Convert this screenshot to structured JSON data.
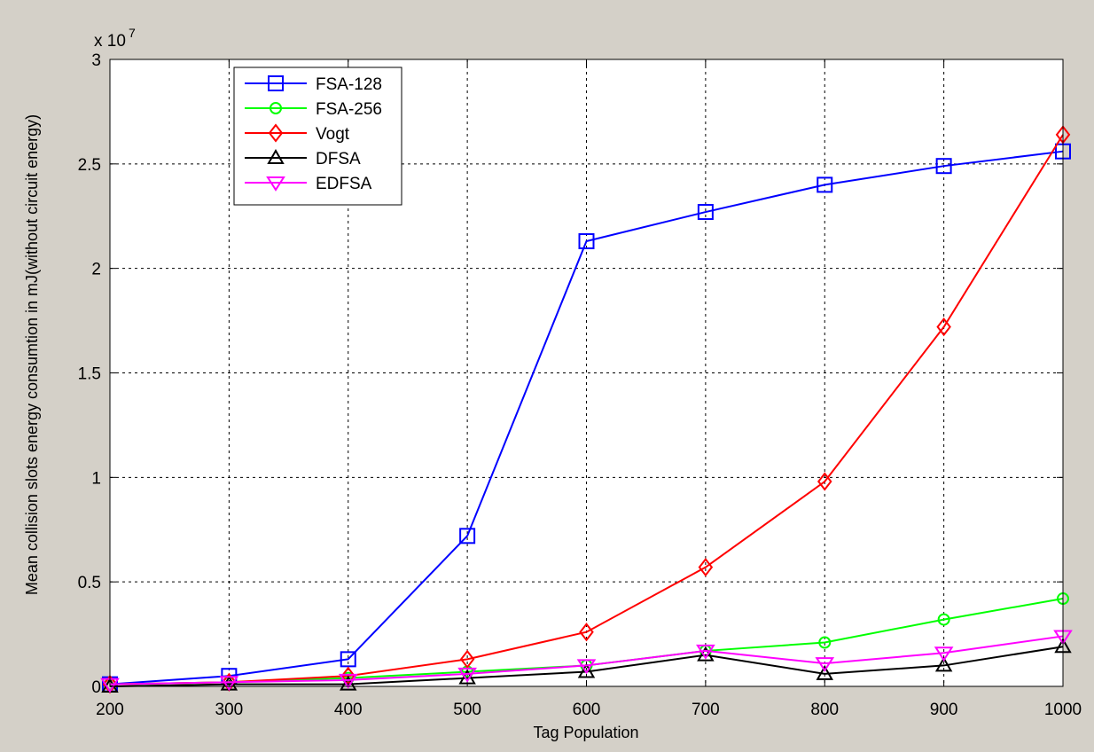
{
  "chart_data": {
    "type": "line",
    "title": "",
    "xlabel": "Tag Population",
    "ylabel": "Mean collision slots energy consumtion in mJ(without circuit energy)",
    "y_multiplier": {
      "base": "x 10",
      "exponent": "7"
    },
    "x": [
      200,
      300,
      400,
      500,
      600,
      700,
      800,
      900,
      1000
    ],
    "xlim": [
      200,
      1000
    ],
    "ylim": [
      0,
      3
    ],
    "x_ticks": [
      "200",
      "300",
      "400",
      "500",
      "600",
      "700",
      "800",
      "900",
      "1000"
    ],
    "y_ticks": [
      "0",
      "0.5",
      "1",
      "1.5",
      "2",
      "2.5",
      "3"
    ],
    "y_tick_values": [
      0,
      0.5,
      1,
      1.5,
      2,
      2.5,
      3
    ],
    "grid": true,
    "legend_position": "top-left",
    "series": [
      {
        "name": "FSA-128",
        "color": "#0000ff",
        "marker": "square",
        "values": [
          0.01,
          0.05,
          0.13,
          0.72,
          2.13,
          2.27,
          2.4,
          2.49,
          2.56
        ]
      },
      {
        "name": "FSA-256",
        "color": "#00ff00",
        "marker": "circle",
        "values": [
          0.01,
          0.02,
          0.04,
          0.07,
          0.1,
          0.17,
          0.21,
          0.32,
          0.42
        ]
      },
      {
        "name": "Vogt",
        "color": "#ff0000",
        "marker": "diamond",
        "values": [
          0.01,
          0.02,
          0.05,
          0.13,
          0.26,
          0.57,
          0.98,
          1.72,
          2.64
        ]
      },
      {
        "name": "DFSA",
        "color": "#000000",
        "marker": "triangle-up",
        "values": [
          0.0,
          0.01,
          0.01,
          0.04,
          0.07,
          0.15,
          0.06,
          0.1,
          0.19
        ]
      },
      {
        "name": "EDFSA",
        "color": "#ff00ff",
        "marker": "triangle-down",
        "values": [
          0.01,
          0.02,
          0.03,
          0.06,
          0.1,
          0.17,
          0.11,
          0.16,
          0.24
        ]
      }
    ]
  }
}
